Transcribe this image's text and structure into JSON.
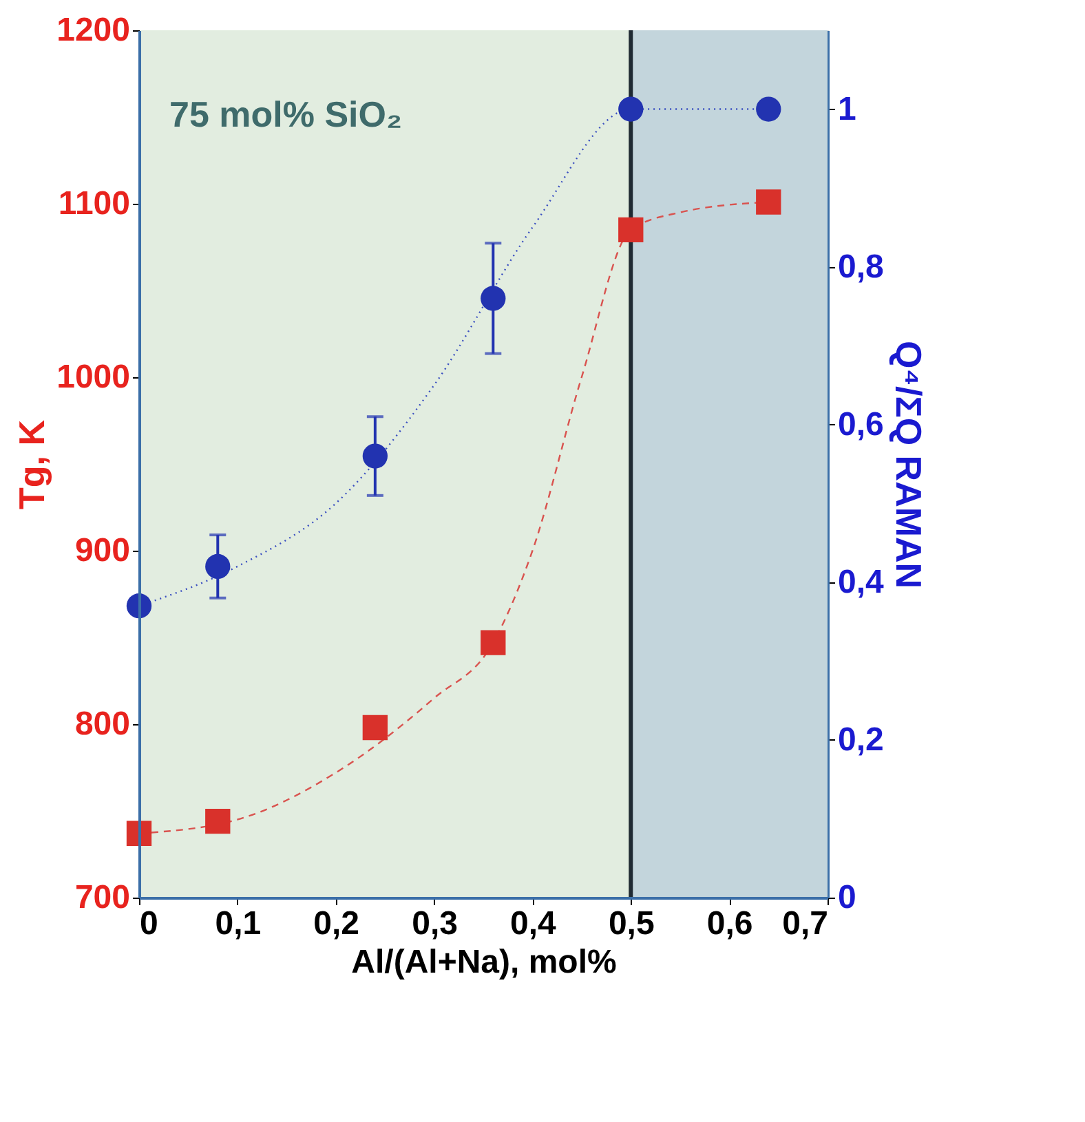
{
  "chart_data": {
    "type": "scatter",
    "xlabel": "Al/(Al+Na), mol%",
    "ylabel": "Tg, K",
    "y2label": "Q⁴/ΣQ RAMAN",
    "annotations": [
      "75 mol% SiO₂"
    ],
    "xlim": [
      0,
      0.7
    ],
    "xticks": [
      0,
      {
        "value": 0.1,
        "label": "0,1"
      },
      {
        "value": 0.2,
        "label": "0,2"
      },
      {
        "value": 0.3,
        "label": "0,3"
      },
      {
        "value": 0.4,
        "label": "0,4"
      },
      {
        "value": 0.5,
        "label": "0,5"
      },
      {
        "value": 0.6,
        "label": "0,6"
      },
      {
        "value": 0.7,
        "label": "0,7"
      }
    ],
    "ylim": [
      700,
      1200
    ],
    "yticks": [
      700,
      800,
      900,
      1000,
      1100,
      1200
    ],
    "y2lim": [
      0,
      1.1
    ],
    "y2ticks": [
      0,
      {
        "value": 0.2,
        "label": "0,2"
      },
      {
        "value": 0.4,
        "label": "0,4"
      },
      {
        "value": 0.6,
        "label": "0,6"
      },
      {
        "value": 0.8,
        "label": "0,8"
      },
      1
    ],
    "grid": false,
    "bands": [
      {
        "axis": "x",
        "from": 0,
        "to": 0.5,
        "color": "#e2ede0"
      },
      {
        "axis": "x",
        "from": 0.5,
        "to": 0.7,
        "color": "#c3d5dc"
      }
    ],
    "ref_lines": [
      {
        "axis": "x",
        "value": 0.5,
        "color": "#1f2a33",
        "line_style": "solid"
      }
    ],
    "series": [
      {
        "type": "line",
        "color": "#d9534f",
        "line_style": "dashed",
        "x": [
          0,
          0.1,
          0.2,
          0.3,
          0.36,
          0.4,
          0.45,
          0.5,
          0.55,
          0.64
        ],
        "values": [
          737,
          745,
          772,
          815,
          847,
          900,
          1000,
          1085,
          1095,
          1101
        ]
      },
      {
        "color": "#d9312b",
        "marker": "square",
        "x": [
          0,
          0.08,
          0.24,
          0.36,
          0.5,
          0.64
        ],
        "values": [
          737,
          744,
          798,
          847,
          1085,
          1101
        ]
      },
      {
        "type": "line",
        "axis": "y2",
        "color": "#3a4fc0",
        "line_style": "dotted",
        "x": [
          0,
          0.1,
          0.2,
          0.3,
          0.4,
          0.5,
          0.55,
          0.64
        ],
        "values": [
          0.37,
          0.42,
          0.5,
          0.65,
          0.85,
          1.0,
          1.0,
          1.0
        ]
      },
      {
        "axis": "y2",
        "color": "#2233b0",
        "marker": "circle",
        "x": [
          0,
          0.08,
          0.24,
          0.36,
          0.5,
          0.64
        ],
        "values": [
          0.37,
          0.42,
          0.56,
          0.76,
          1.0,
          1.0
        ],
        "errors": [
          null,
          0.04,
          0.05,
          0.07,
          0.01,
          0.01
        ]
      }
    ]
  }
}
